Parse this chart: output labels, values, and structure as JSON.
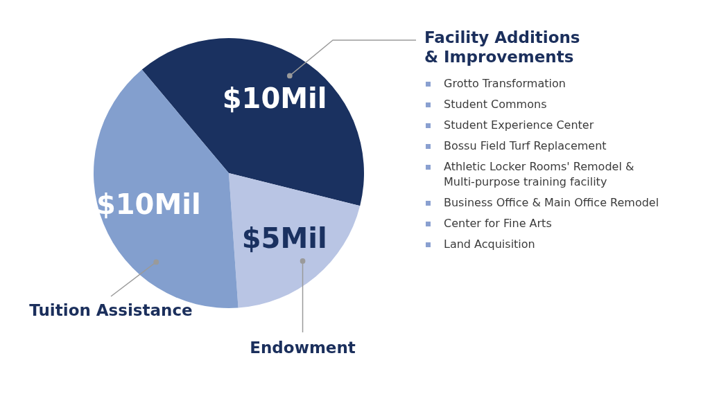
{
  "chart_data": {
    "type": "pie",
    "categories": [
      "Facility Additions & Improvements",
      "Endowment",
      "Tuition Assistance"
    ],
    "values": [
      10,
      5,
      10
    ],
    "colors": [
      "#1a3160",
      "#b9c5e4",
      "#839fce"
    ],
    "value_labels": [
      "$10Mil",
      "$5Mil",
      "$10Mil"
    ],
    "annotations": [
      "Grotto Transformation",
      "Student Commons",
      "Student Experience Center",
      "Bossu Field Turf Replacement",
      "Athletic Locker Rooms' Remodel & Multi-purpose training facility",
      "Business Office & Main Office Remodel",
      "Center for Fine Arts",
      "Land Acquisition"
    ]
  }
}
